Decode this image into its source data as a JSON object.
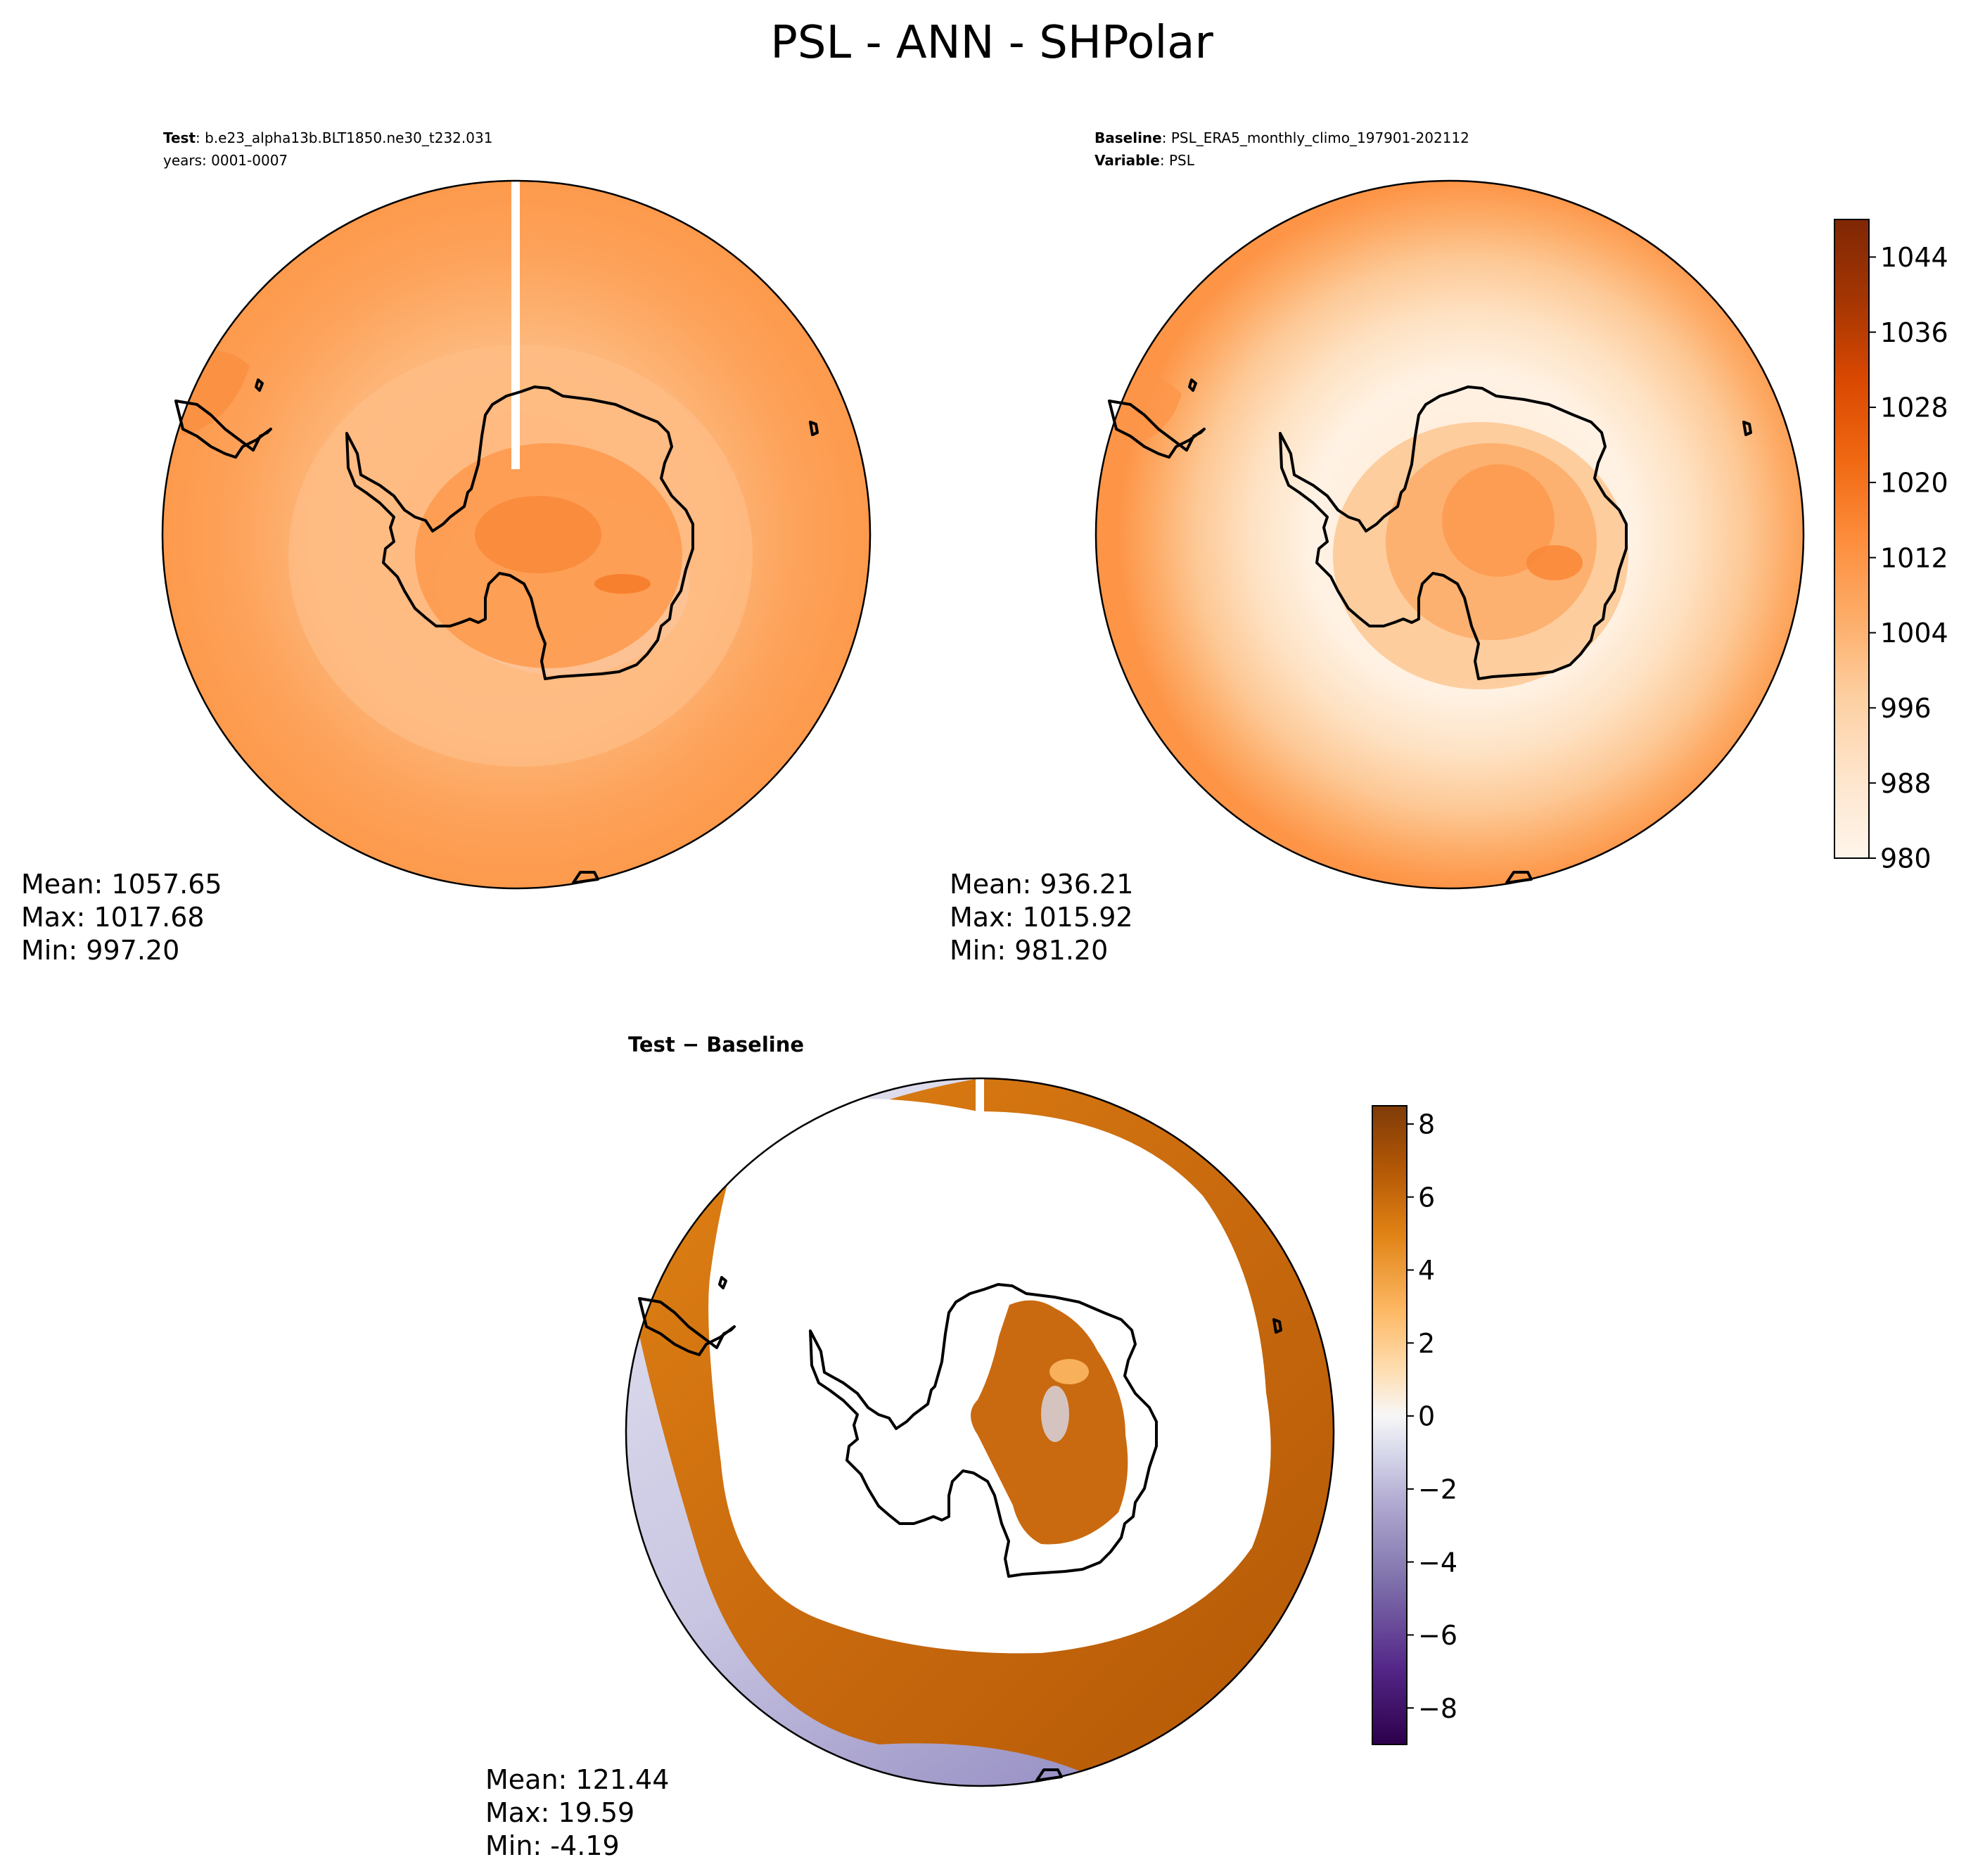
{
  "title": "PSL - ANN - SHPolar",
  "colors": {
    "oranges_ramp": [
      "#fff5eb",
      "#fee6ce",
      "#fdd0a2",
      "#fdae6b",
      "#fd8d3c",
      "#f16913",
      "#d94801",
      "#a63603",
      "#7f2704"
    ],
    "diverging_ramp": [
      "#2d004b",
      "#542788",
      "#8073ac",
      "#b2abd2",
      "#d8daeb",
      "#f7f7f7",
      "#fee0b6",
      "#fdb863",
      "#e08214",
      "#b35806",
      "#7f3b08"
    ],
    "coastline": "#000000"
  },
  "test_panel": {
    "header_label_bold": "Test",
    "header_value": ": b.e23_alpha13b.BLT1850.ne30_t232.031",
    "header_line2": "years: 0001-0007",
    "stats": [
      "Mean: 1057.65",
      "Max: 1017.68",
      "Min: 997.20"
    ]
  },
  "baseline_panel": {
    "header_label_bold": "Baseline",
    "header_value": ": PSL_ERA5_monthly_climo_197901-202112",
    "header_label2_bold": "Variable",
    "header_value2": ": PSL",
    "stats": [
      "Mean: 936.21",
      "Max: 1015.92",
      "Min: 981.20"
    ]
  },
  "diff_panel": {
    "header": "Test − Baseline",
    "stats": [
      "Mean: 121.44",
      "Max: 19.59",
      "Min: -4.19"
    ]
  },
  "chart_data": [
    {
      "type": "heatmap",
      "panel": "test",
      "projection": "south polar stereographic",
      "summary": {
        "mean": 1057.65,
        "max": 1017.68,
        "min": 997.2
      }
    },
    {
      "type": "heatmap",
      "panel": "baseline",
      "projection": "south polar stereographic",
      "summary": {
        "mean": 936.21,
        "max": 1015.92,
        "min": 981.2
      },
      "colorbar": {
        "range": [
          980,
          1048
        ],
        "ticks": [
          980,
          988,
          996,
          1004,
          1012,
          1020,
          1028,
          1036,
          1044
        ],
        "cmap": "oranges"
      }
    },
    {
      "type": "heatmap",
      "panel": "difference",
      "projection": "south polar stereographic",
      "summary": {
        "mean": 121.44,
        "max": 19.59,
        "min": -4.19
      },
      "colorbar": {
        "range": [
          -9,
          8.5
        ],
        "ticks": [
          -8,
          -6,
          -4,
          -2,
          0,
          2,
          4,
          6,
          8
        ],
        "tick_labels": [
          "−8",
          "−6",
          "−4",
          "−2",
          "0",
          "2",
          "4",
          "6",
          "8"
        ],
        "cmap": "diverging orange-purple"
      }
    }
  ]
}
